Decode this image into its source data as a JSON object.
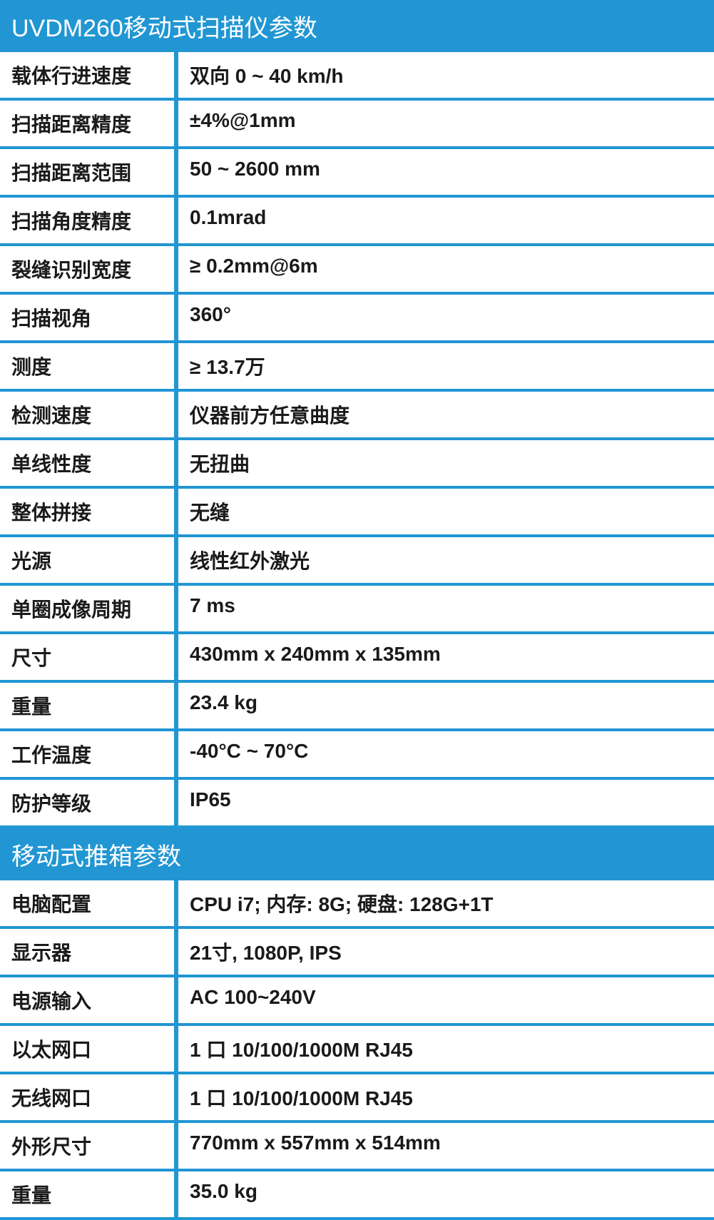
{
  "colors": {
    "header_bg": "#2196d3",
    "header_text": "#ffffff",
    "cell_bg": "#ffffff",
    "cell_text": "#1a1a1a",
    "border": "#2196d3"
  },
  "typography": {
    "header_fontsize": 34,
    "cell_fontsize": 28,
    "cell_fontweight": 700
  },
  "layout": {
    "label_width": 250,
    "row_border_width": 4,
    "col_separator_width": 6
  },
  "sections": [
    {
      "title": "UVDM260移动式扫描仪参数",
      "rows": [
        {
          "label": "载体行进速度",
          "value": "双向 0 ~ 40 km/h"
        },
        {
          "label": "扫描距离精度",
          "value": "±4%@1mm"
        },
        {
          "label": "扫描距离范围",
          "value": "50 ~ 2600 mm"
        },
        {
          "label": "扫描角度精度",
          "value": "0.1mrad"
        },
        {
          "label": "裂缝识别宽度",
          "value": "≥ 0.2mm@6m"
        },
        {
          "label": "扫描视角",
          "value": "360°"
        },
        {
          "label": "测度",
          "value": "≥ 13.7万"
        },
        {
          "label": "检测速度",
          "value": "仪器前方任意曲度"
        },
        {
          "label": "单线性度",
          "value": "无扭曲"
        },
        {
          "label": "整体拼接",
          "value": "无缝"
        },
        {
          "label": "光源",
          "value": "线性红外激光"
        },
        {
          "label": "单圈成像周期",
          "value": "7 ms"
        },
        {
          "label": "尺寸",
          "value": "430mm x 240mm x 135mm"
        },
        {
          "label": "重量",
          "value": "23.4 kg"
        },
        {
          "label": "工作温度",
          "value": "-40°C ~ 70°C"
        },
        {
          "label": "防护等级",
          "value": "IP65"
        }
      ]
    },
    {
      "title": "移动式推箱参数",
      "rows": [
        {
          "label": "电脑配置",
          "value": "CPU i7; 内存: 8G; 硬盘: 128G+1T"
        },
        {
          "label": "显示器",
          "value": "21寸, 1080P, IPS"
        },
        {
          "label": "电源输入",
          "value": "AC 100~240V"
        },
        {
          "label": "以太网口",
          "value": "1 口 10/100/1000M RJ45"
        },
        {
          "label": "无线网口",
          "value": "1 口 10/100/1000M RJ45"
        },
        {
          "label": "外形尺寸",
          "value": "770mm x 557mm x 514mm"
        },
        {
          "label": "重量",
          "value": "35.0 kg"
        }
      ]
    }
  ]
}
